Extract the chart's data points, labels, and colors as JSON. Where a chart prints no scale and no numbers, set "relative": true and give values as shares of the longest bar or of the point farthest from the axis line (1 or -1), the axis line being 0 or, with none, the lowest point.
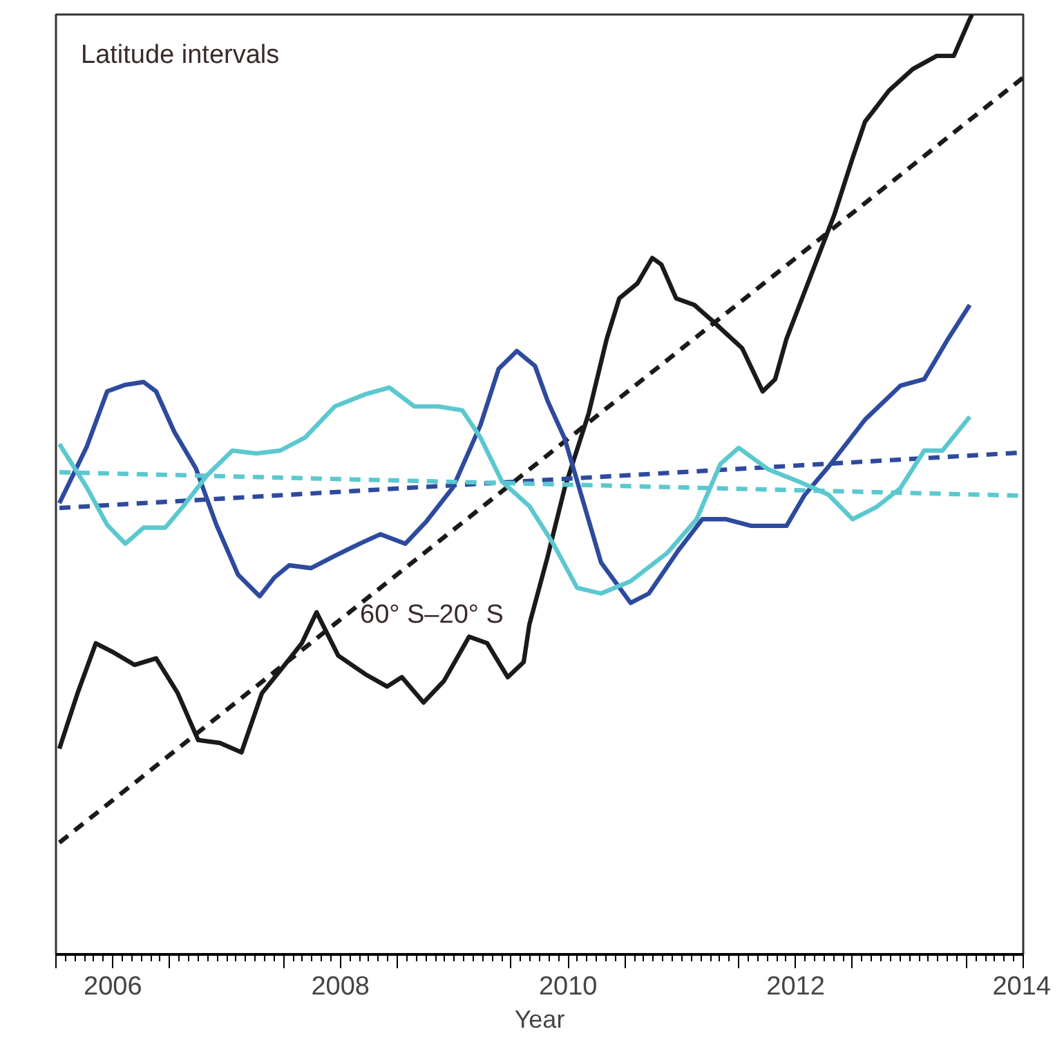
{
  "chart_data": {
    "type": "line",
    "relative": true,
    "xlabel": "Year",
    "xlim": [
      2005.5,
      2014
    ],
    "xticks": [
      {
        "value": 2005.5,
        "label": null
      },
      2006,
      {
        "value": 2006.5,
        "label": null
      },
      {
        "value": 2007.5,
        "label": null
      },
      2008,
      {
        "value": 2008.5,
        "label": null
      },
      {
        "value": 2009.5,
        "label": null
      },
      2010,
      {
        "value": 2010.5,
        "label": null
      },
      {
        "value": 2011.5,
        "label": null
      },
      2012,
      {
        "value": 2012.5,
        "label": null
      },
      {
        "value": 2013.5,
        "label": null
      },
      2014
    ],
    "grid": false,
    "line_style": "solid",
    "annotations": [
      "Latitude intervals",
      "60° S–20° S"
    ],
    "series": [
      {
        "color": "#1a1a1a",
        "x": [
          2005.53,
          2005.69,
          2005.85,
          2006.01,
          2006.19,
          2006.38,
          2006.57,
          2006.75,
          2006.94,
          2007.13,
          2007.31,
          2007.53,
          2007.66,
          2007.79,
          2007.98,
          2008.22,
          2008.41,
          2008.54,
          2008.73,
          2008.91,
          2009.13,
          2009.29,
          2009.47,
          2009.61,
          2009.66,
          2009.82,
          2009.97,
          2010.18,
          2010.34,
          2010.45,
          2010.61,
          2010.74,
          2010.82,
          2010.95,
          2011.11,
          2011.26,
          2011.53,
          2011.71,
          2011.82,
          2011.92,
          2012.13,
          2012.34,
          2012.5,
          2012.61,
          2012.82,
          2013.03,
          2013.24,
          2013.39,
          2013.53,
          2013.55
        ],
        "values": [
          0.219,
          0.278,
          0.331,
          0.321,
          0.308,
          0.315,
          0.278,
          0.228,
          0.225,
          0.215,
          0.278,
          0.311,
          0.331,
          0.364,
          0.318,
          0.298,
          0.285,
          0.295,
          0.268,
          0.291,
          0.338,
          0.331,
          0.295,
          0.311,
          0.351,
          0.423,
          0.496,
          0.575,
          0.655,
          0.698,
          0.714,
          0.741,
          0.734,
          0.698,
          0.691,
          0.675,
          0.645,
          0.599,
          0.612,
          0.655,
          0.721,
          0.787,
          0.847,
          0.886,
          0.919,
          0.942,
          0.956,
          0.956,
          0.995,
          1.0
        ]
      },
      {
        "color": "#1a1a1a",
        "line_style": "dashed",
        "x": [
          2005.53,
          2014.0
        ],
        "values": [
          0.119,
          0.933
        ]
      },
      {
        "color": "#2e4a9e",
        "x": [
          2005.53,
          2005.77,
          2005.95,
          2006.11,
          2006.27,
          2006.38,
          2006.54,
          2006.73,
          2006.91,
          2007.1,
          2007.29,
          2007.42,
          2007.55,
          2007.74,
          2007.95,
          2008.17,
          2008.35,
          2008.57,
          2008.75,
          2008.99,
          2009.23,
          2009.39,
          2009.55,
          2009.71,
          2009.82,
          2009.97,
          2010.13,
          2010.29,
          2010.55,
          2010.71,
          2010.97,
          2011.18,
          2011.39,
          2011.61,
          2011.82,
          2011.92,
          2012.08,
          2012.29,
          2012.61,
          2012.92,
          2013.13,
          2013.34,
          2013.53
        ],
        "values": [
          0.48,
          0.54,
          0.599,
          0.606,
          0.609,
          0.599,
          0.556,
          0.517,
          0.457,
          0.404,
          0.381,
          0.401,
          0.414,
          0.411,
          0.424,
          0.437,
          0.447,
          0.437,
          0.46,
          0.497,
          0.563,
          0.623,
          0.642,
          0.626,
          0.589,
          0.549,
          0.483,
          0.417,
          0.374,
          0.384,
          0.43,
          0.463,
          0.463,
          0.456,
          0.456,
          0.456,
          0.489,
          0.519,
          0.569,
          0.605,
          0.612,
          0.655,
          0.691
        ]
      },
      {
        "color": "#2e4a9e",
        "line_style": "dashed",
        "x": [
          2005.53,
          2014.0
        ],
        "values": [
          0.475,
          0.534
        ]
      },
      {
        "color": "#5bc8cf",
        "x": [
          2005.53,
          2005.77,
          2005.95,
          2006.11,
          2006.27,
          2006.46,
          2006.62,
          2006.83,
          2007.05,
          2007.26,
          2007.47,
          2007.69,
          2007.95,
          2008.22,
          2008.43,
          2008.65,
          2008.86,
          2009.07,
          2009.23,
          2009.42,
          2009.66,
          2009.87,
          2010.08,
          2010.29,
          2010.55,
          2010.87,
          2011.13,
          2011.34,
          2011.5,
          2011.76,
          2012.03,
          2012.29,
          2012.5,
          2012.71,
          2012.92,
          2013.13,
          2013.29,
          2013.53
        ],
        "values": [
          0.543,
          0.497,
          0.457,
          0.437,
          0.454,
          0.454,
          0.477,
          0.51,
          0.536,
          0.533,
          0.536,
          0.55,
          0.583,
          0.596,
          0.603,
          0.583,
          0.583,
          0.579,
          0.55,
          0.503,
          0.477,
          0.437,
          0.39,
          0.384,
          0.397,
          0.427,
          0.463,
          0.522,
          0.539,
          0.516,
          0.503,
          0.489,
          0.463,
          0.476,
          0.496,
          0.536,
          0.536,
          0.572
        ]
      },
      {
        "color": "#5bc8cf",
        "line_style": "dashed",
        "x": [
          2005.53,
          2014.0
        ],
        "values": [
          0.513,
          0.488
        ]
      }
    ]
  }
}
